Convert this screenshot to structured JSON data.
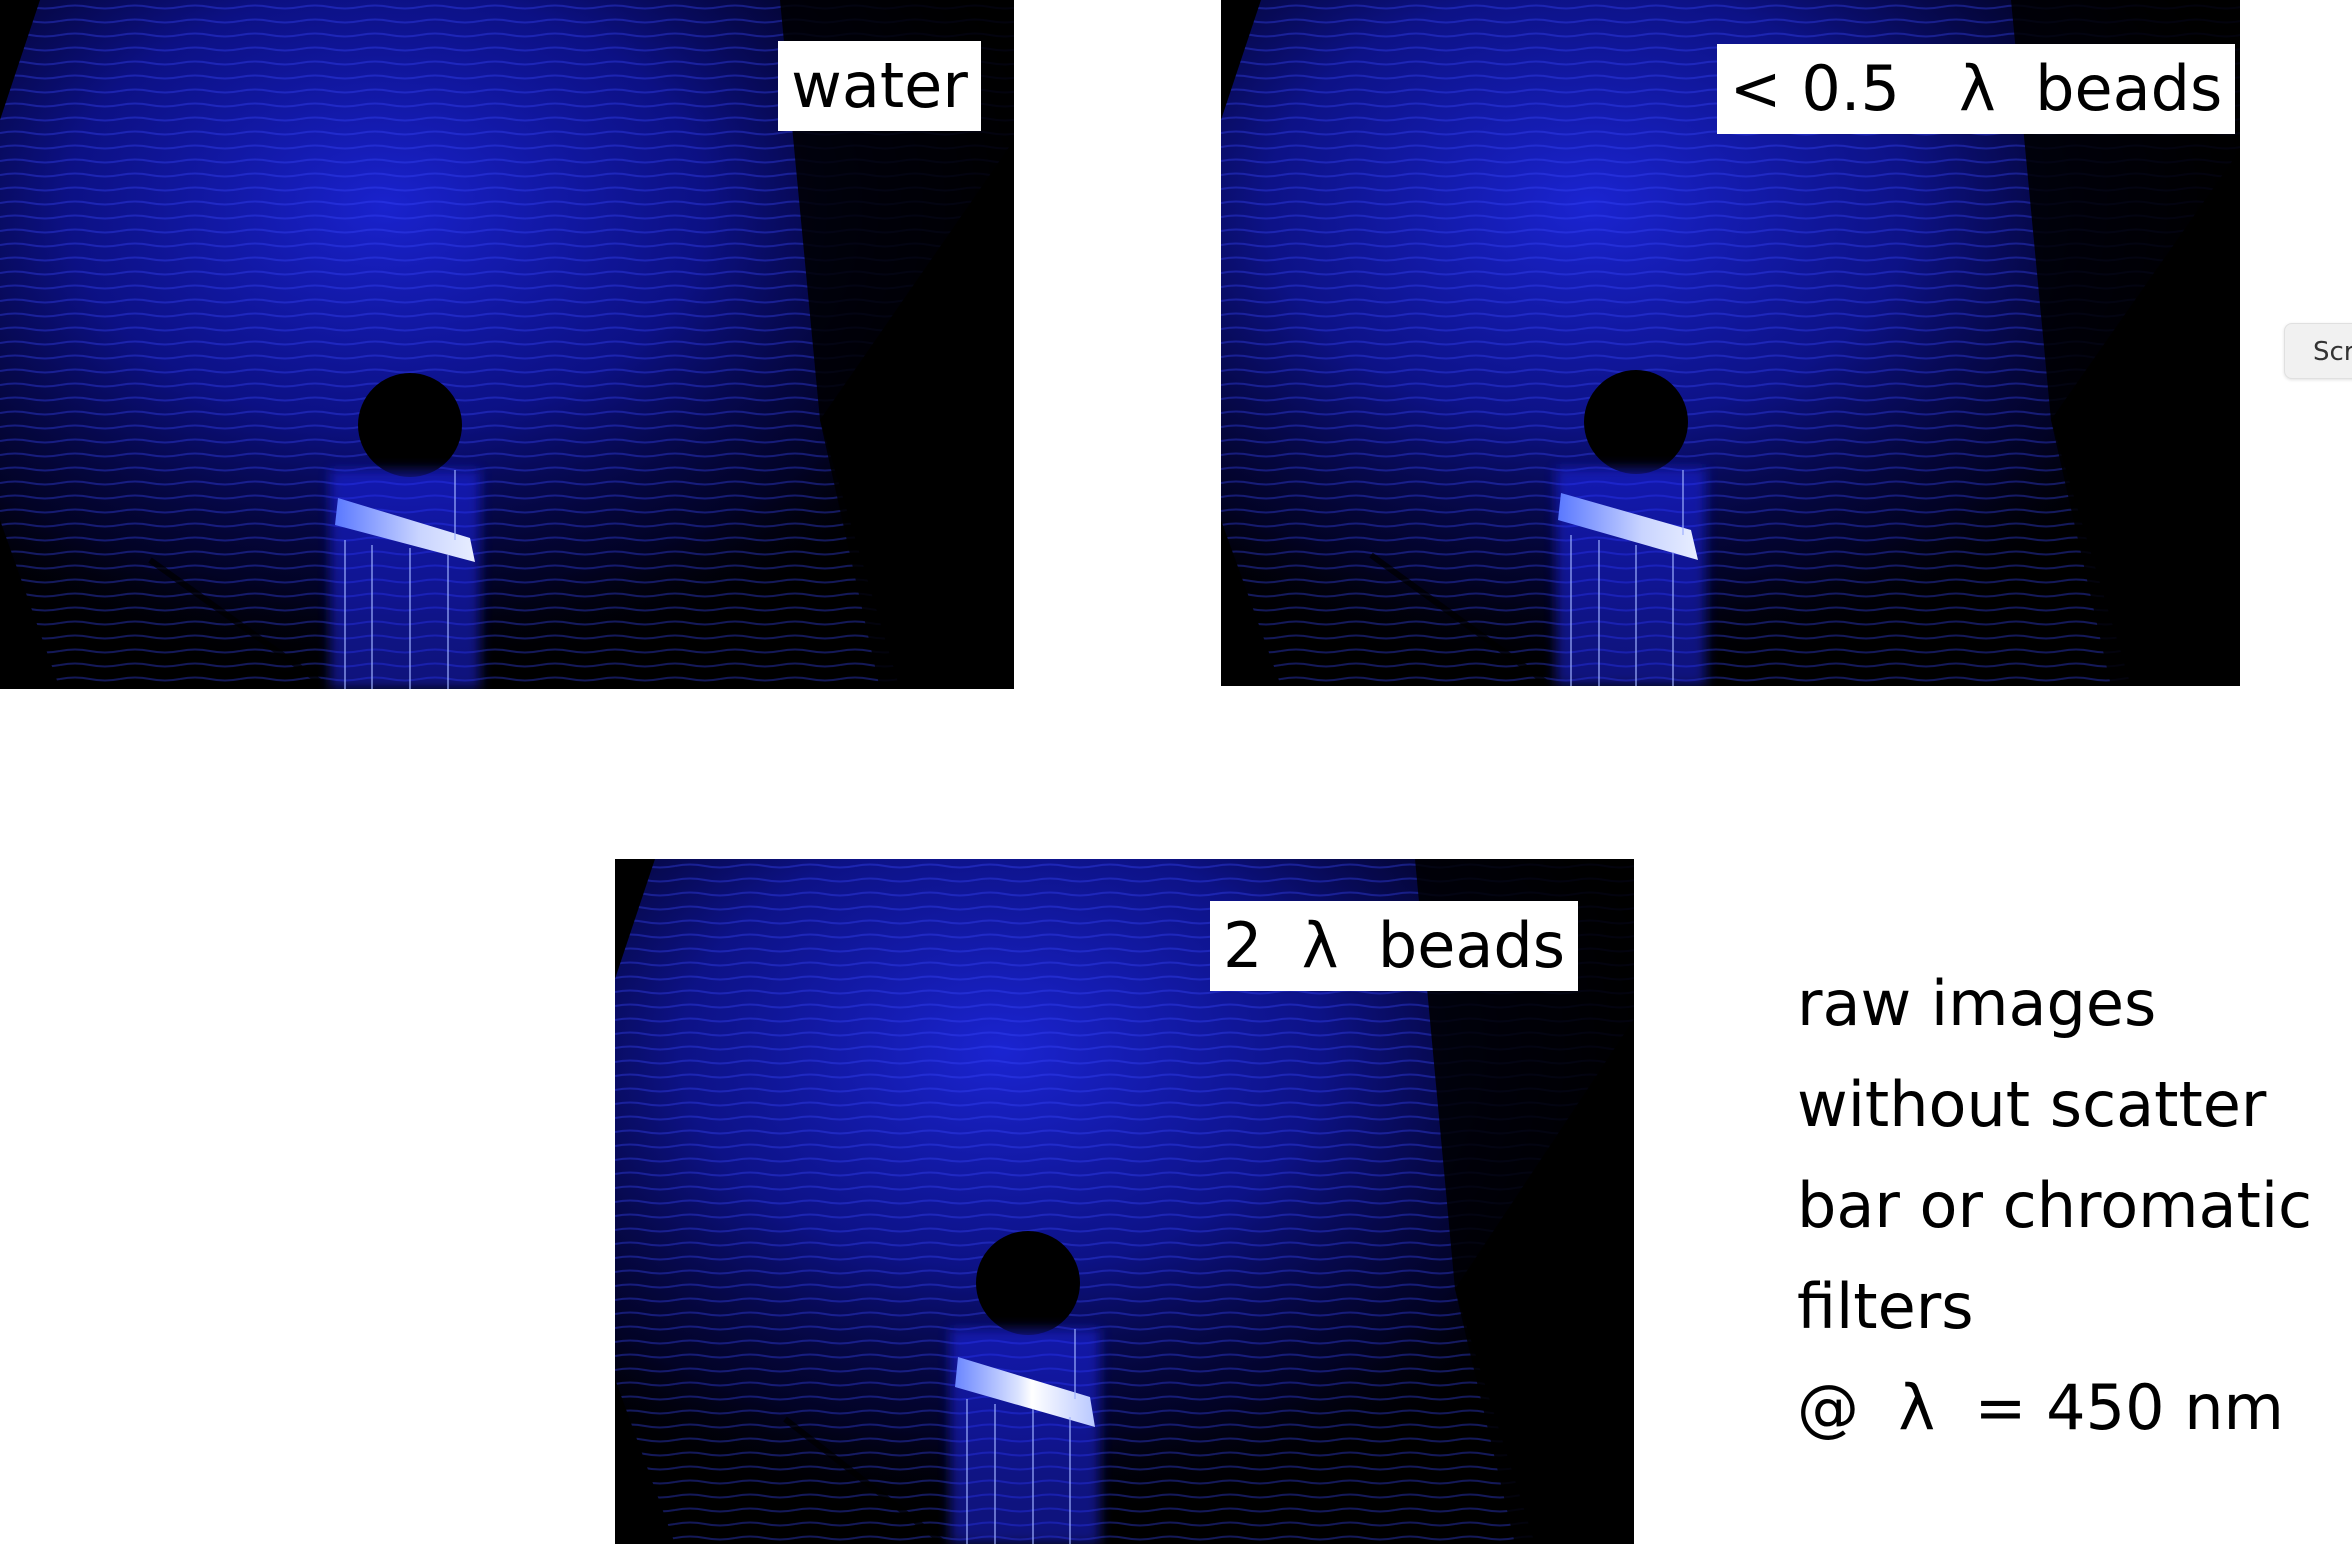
{
  "panels": [
    {
      "id": "water",
      "label": "water"
    },
    {
      "id": "small",
      "label": "< 0.5   λ  beads"
    },
    {
      "id": "large",
      "label": "2  λ  beads"
    }
  ],
  "caption": {
    "lines": [
      "raw images",
      "without scatter",
      "bar or chromatic",
      "filters",
      "@  λ  = 450 nm"
    ]
  },
  "floating_button": {
    "label": "Scr"
  },
  "colors": {
    "background": "#ffffff",
    "image_base": "#000000",
    "laser_blue": "#1a1aff",
    "highlight": "#cfd8ff"
  }
}
